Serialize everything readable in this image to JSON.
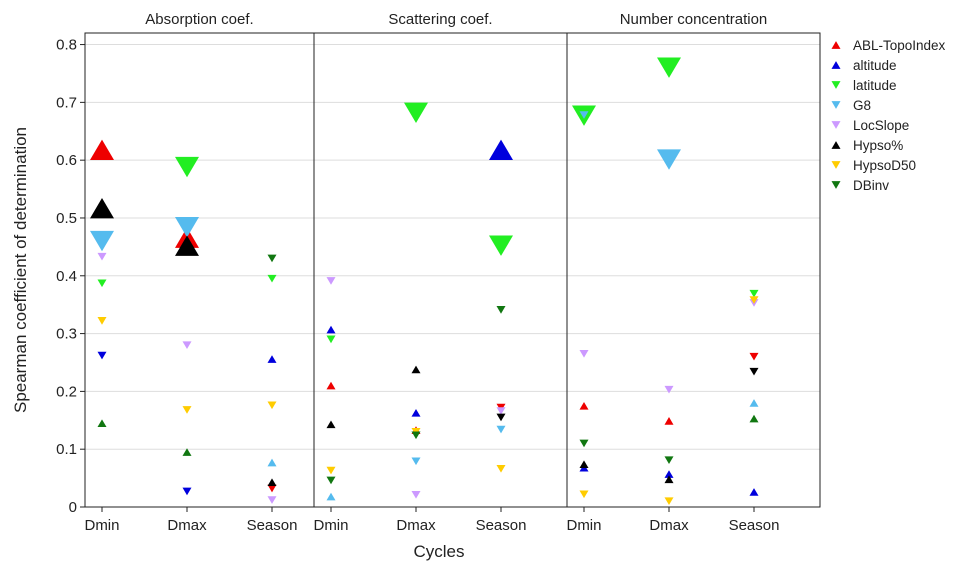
{
  "chart_data": {
    "type": "scatter",
    "panels": [
      "Absorption coef.",
      "Scattering coef.",
      "Number concentration"
    ],
    "categories": [
      "Dmin",
      "Dmax",
      "Season"
    ],
    "xlabel": "Cycles",
    "ylabel": "Spearman coefficient of determination",
    "ylim": [
      0,
      0.82
    ],
    "yticks": [
      "0",
      "0.1",
      "0.2",
      "0.3",
      "0.4",
      "0.5",
      "0.6",
      "0.7",
      "0.8"
    ],
    "grid": true,
    "legend_position": "right",
    "marker_note": "up triangle = positive correlation, down triangle = negative correlation; large markers = larger emphasis",
    "series": [
      {
        "name": "ABL-TopoIndex",
        "color": "#ee0000",
        "points": [
          {
            "panel": 0,
            "x": "Dmin",
            "y": 0.618,
            "dir": "up",
            "size": "large"
          },
          {
            "panel": 0,
            "x": "Dmax",
            "y": 0.466,
            "dir": "up",
            "size": "large"
          },
          {
            "panel": 0,
            "x": "Season",
            "y": 0.032,
            "dir": "down",
            "size": "small"
          },
          {
            "panel": 1,
            "x": "Dmin",
            "y": 0.21,
            "dir": "up",
            "size": "small"
          },
          {
            "panel": 1,
            "x": "Dmax",
            "y": 0.133,
            "dir": "up",
            "size": "small"
          },
          {
            "panel": 1,
            "x": "Season",
            "y": 0.172,
            "dir": "down",
            "size": "small"
          },
          {
            "panel": 2,
            "x": "Dmin",
            "y": 0.175,
            "dir": "up",
            "size": "small"
          },
          {
            "panel": 2,
            "x": "Dmax",
            "y": 0.149,
            "dir": "up",
            "size": "small"
          },
          {
            "panel": 2,
            "x": "Season",
            "y": 0.26,
            "dir": "down",
            "size": "small"
          }
        ]
      },
      {
        "name": "altitude",
        "color": "#0000dd",
        "points": [
          {
            "panel": 0,
            "x": "Dmin",
            "y": 0.262,
            "dir": "down",
            "size": "small"
          },
          {
            "panel": 0,
            "x": "Dmax",
            "y": 0.027,
            "dir": "down",
            "size": "small"
          },
          {
            "panel": 0,
            "x": "Season",
            "y": 0.256,
            "dir": "up",
            "size": "small"
          },
          {
            "panel": 1,
            "x": "Dmin",
            "y": 0.307,
            "dir": "up",
            "size": "small"
          },
          {
            "panel": 1,
            "x": "Dmax",
            "y": 0.163,
            "dir": "up",
            "size": "small"
          },
          {
            "panel": 1,
            "x": "Season",
            "y": 0.618,
            "dir": "up",
            "size": "large"
          },
          {
            "panel": 2,
            "x": "Dmin",
            "y": 0.068,
            "dir": "up",
            "size": "small"
          },
          {
            "panel": 2,
            "x": "Dmax",
            "y": 0.057,
            "dir": "up",
            "size": "small"
          },
          {
            "panel": 2,
            "x": "Season",
            "y": 0.026,
            "dir": "up",
            "size": "small"
          }
        ]
      },
      {
        "name": "latitude",
        "color": "#22ee22",
        "points": [
          {
            "panel": 0,
            "x": "Dmin",
            "y": 0.387,
            "dir": "down",
            "size": "small"
          },
          {
            "panel": 0,
            "x": "Dmax",
            "y": 0.588,
            "dir": "down",
            "size": "large"
          },
          {
            "panel": 0,
            "x": "Season",
            "y": 0.395,
            "dir": "down",
            "size": "small"
          },
          {
            "panel": 1,
            "x": "Dmin",
            "y": 0.29,
            "dir": "down",
            "size": "small"
          },
          {
            "panel": 1,
            "x": "Dmax",
            "y": 0.682,
            "dir": "down",
            "size": "large"
          },
          {
            "panel": 1,
            "x": "Season",
            "y": 0.452,
            "dir": "down",
            "size": "large"
          },
          {
            "panel": 2,
            "x": "Dmin",
            "y": 0.677,
            "dir": "down",
            "size": "large"
          },
          {
            "panel": 2,
            "x": "Dmax",
            "y": 0.76,
            "dir": "down",
            "size": "large"
          },
          {
            "panel": 2,
            "x": "Season",
            "y": 0.369,
            "dir": "down",
            "size": "small"
          }
        ]
      },
      {
        "name": "G8",
        "color": "#55bbee",
        "points": [
          {
            "panel": 0,
            "x": "Dmin",
            "y": 0.46,
            "dir": "down",
            "size": "large"
          },
          {
            "panel": 0,
            "x": "Dmax",
            "y": 0.484,
            "dir": "down",
            "size": "large"
          },
          {
            "panel": 0,
            "x": "Season",
            "y": 0.077,
            "dir": "up",
            "size": "small"
          },
          {
            "panel": 1,
            "x": "Dmin",
            "y": 0.018,
            "dir": "up",
            "size": "small"
          },
          {
            "panel": 1,
            "x": "Dmax",
            "y": 0.079,
            "dir": "down",
            "size": "small"
          },
          {
            "panel": 1,
            "x": "Season",
            "y": 0.134,
            "dir": "down",
            "size": "small"
          },
          {
            "panel": 2,
            "x": "Dmin",
            "y": 0.678,
            "dir": "down",
            "size": "small"
          },
          {
            "panel": 2,
            "x": "Dmax",
            "y": 0.601,
            "dir": "down",
            "size": "large"
          },
          {
            "panel": 2,
            "x": "Season",
            "y": 0.18,
            "dir": "up",
            "size": "small"
          }
        ]
      },
      {
        "name": "LocSlope",
        "color": "#cc99ff",
        "points": [
          {
            "panel": 0,
            "x": "Dmin",
            "y": 0.433,
            "dir": "down",
            "size": "small"
          },
          {
            "panel": 0,
            "x": "Dmax",
            "y": 0.28,
            "dir": "down",
            "size": "small"
          },
          {
            "panel": 0,
            "x": "Season",
            "y": 0.012,
            "dir": "down",
            "size": "small"
          },
          {
            "panel": 1,
            "x": "Dmin",
            "y": 0.391,
            "dir": "down",
            "size": "small"
          },
          {
            "panel": 1,
            "x": "Dmax",
            "y": 0.021,
            "dir": "down",
            "size": "small"
          },
          {
            "panel": 1,
            "x": "Season",
            "y": 0.166,
            "dir": "down",
            "size": "small"
          },
          {
            "panel": 2,
            "x": "Dmin",
            "y": 0.265,
            "dir": "down",
            "size": "small"
          },
          {
            "panel": 2,
            "x": "Dmax",
            "y": 0.203,
            "dir": "down",
            "size": "small"
          },
          {
            "panel": 2,
            "x": "Season",
            "y": 0.353,
            "dir": "down",
            "size": "small"
          }
        ]
      },
      {
        "name": "Hypso%",
        "color": "#000000",
        "points": [
          {
            "panel": 0,
            "x": "Dmin",
            "y": 0.517,
            "dir": "up",
            "size": "large"
          },
          {
            "panel": 0,
            "x": "Dmax",
            "y": 0.452,
            "dir": "up",
            "size": "large"
          },
          {
            "panel": 0,
            "x": "Season",
            "y": 0.043,
            "dir": "up",
            "size": "small"
          },
          {
            "panel": 1,
            "x": "Dmin",
            "y": 0.143,
            "dir": "up",
            "size": "small"
          },
          {
            "panel": 1,
            "x": "Dmax",
            "y": 0.238,
            "dir": "up",
            "size": "small"
          },
          {
            "panel": 1,
            "x": "Season",
            "y": 0.155,
            "dir": "down",
            "size": "small"
          },
          {
            "panel": 2,
            "x": "Dmin",
            "y": 0.074,
            "dir": "up",
            "size": "small"
          },
          {
            "panel": 2,
            "x": "Dmax",
            "y": 0.048,
            "dir": "up",
            "size": "small"
          },
          {
            "panel": 2,
            "x": "Season",
            "y": 0.234,
            "dir": "down",
            "size": "small"
          }
        ]
      },
      {
        "name": "HypsoD50",
        "color": "#ffcc00",
        "points": [
          {
            "panel": 0,
            "x": "Dmin",
            "y": 0.322,
            "dir": "down",
            "size": "small"
          },
          {
            "panel": 0,
            "x": "Dmax",
            "y": 0.168,
            "dir": "down",
            "size": "small"
          },
          {
            "panel": 0,
            "x": "Season",
            "y": 0.176,
            "dir": "down",
            "size": "small"
          },
          {
            "panel": 1,
            "x": "Dmin",
            "y": 0.063,
            "dir": "down",
            "size": "small"
          },
          {
            "panel": 1,
            "x": "Dmax",
            "y": 0.13,
            "dir": "down",
            "size": "small"
          },
          {
            "panel": 1,
            "x": "Season",
            "y": 0.066,
            "dir": "down",
            "size": "small"
          },
          {
            "panel": 2,
            "x": "Dmin",
            "y": 0.022,
            "dir": "down",
            "size": "small"
          },
          {
            "panel": 2,
            "x": "Dmax",
            "y": 0.01,
            "dir": "down",
            "size": "small"
          },
          {
            "panel": 2,
            "x": "Season",
            "y": 0.358,
            "dir": "down",
            "size": "small"
          }
        ]
      },
      {
        "name": "DBinv",
        "color": "#117711",
        "points": [
          {
            "panel": 0,
            "x": "Dmin",
            "y": 0.145,
            "dir": "up",
            "size": "small"
          },
          {
            "panel": 0,
            "x": "Dmax",
            "y": 0.095,
            "dir": "up",
            "size": "small"
          },
          {
            "panel": 0,
            "x": "Season",
            "y": 0.43,
            "dir": "down",
            "size": "small"
          },
          {
            "panel": 1,
            "x": "Dmin",
            "y": 0.046,
            "dir": "down",
            "size": "small"
          },
          {
            "panel": 1,
            "x": "Dmax",
            "y": 0.124,
            "dir": "down",
            "size": "small"
          },
          {
            "panel": 1,
            "x": "Season",
            "y": 0.341,
            "dir": "down",
            "size": "small"
          },
          {
            "panel": 2,
            "x": "Dmin",
            "y": 0.11,
            "dir": "down",
            "size": "small"
          },
          {
            "panel": 2,
            "x": "Dmax",
            "y": 0.081,
            "dir": "down",
            "size": "small"
          },
          {
            "panel": 2,
            "x": "Season",
            "y": 0.153,
            "dir": "up",
            "size": "small"
          }
        ]
      }
    ]
  }
}
